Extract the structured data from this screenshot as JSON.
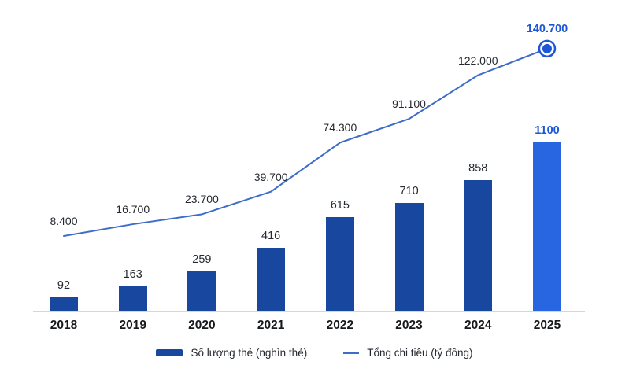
{
  "chart_data": {
    "type": "combo",
    "categories": [
      "2018",
      "2019",
      "2020",
      "2021",
      "2022",
      "2023",
      "2024",
      "2025"
    ],
    "series": [
      {
        "name": "Số lượng thẻ (nghìn thẻ)",
        "type": "bar",
        "values": [
          92,
          163,
          259,
          416,
          615,
          710,
          858,
          1100
        ],
        "labels": [
          "92",
          "163",
          "259",
          "416",
          "615",
          "710",
          "858",
          "1100"
        ],
        "highlight_index": 7
      },
      {
        "name": "Tổng chi tiêu (tỷ đồng)",
        "type": "line",
        "values": [
          8400,
          16700,
          23700,
          39700,
          74300,
          91100,
          122000,
          140700
        ],
        "labels": [
          "8.400",
          "16.700",
          "23.700",
          "39.700",
          "74.300",
          "91.100",
          "122.000",
          "140.700"
        ],
        "highlight_index": 7,
        "end_marker": true
      }
    ],
    "colors": {
      "bar": "#17479E",
      "bar_highlight": "#2766E0",
      "line": "#3D6DC8",
      "accent_text": "#1D56D6",
      "label": "#24292F",
      "year_label": "#17191C",
      "axis": "#D6D6D6"
    },
    "legend": {
      "position": "bottom"
    },
    "axes": {
      "x_visible": true,
      "y_visible": false,
      "grid": false
    },
    "ylim_bars": [
      0,
      1200
    ],
    "ylim_line": [
      0,
      150000
    ]
  }
}
